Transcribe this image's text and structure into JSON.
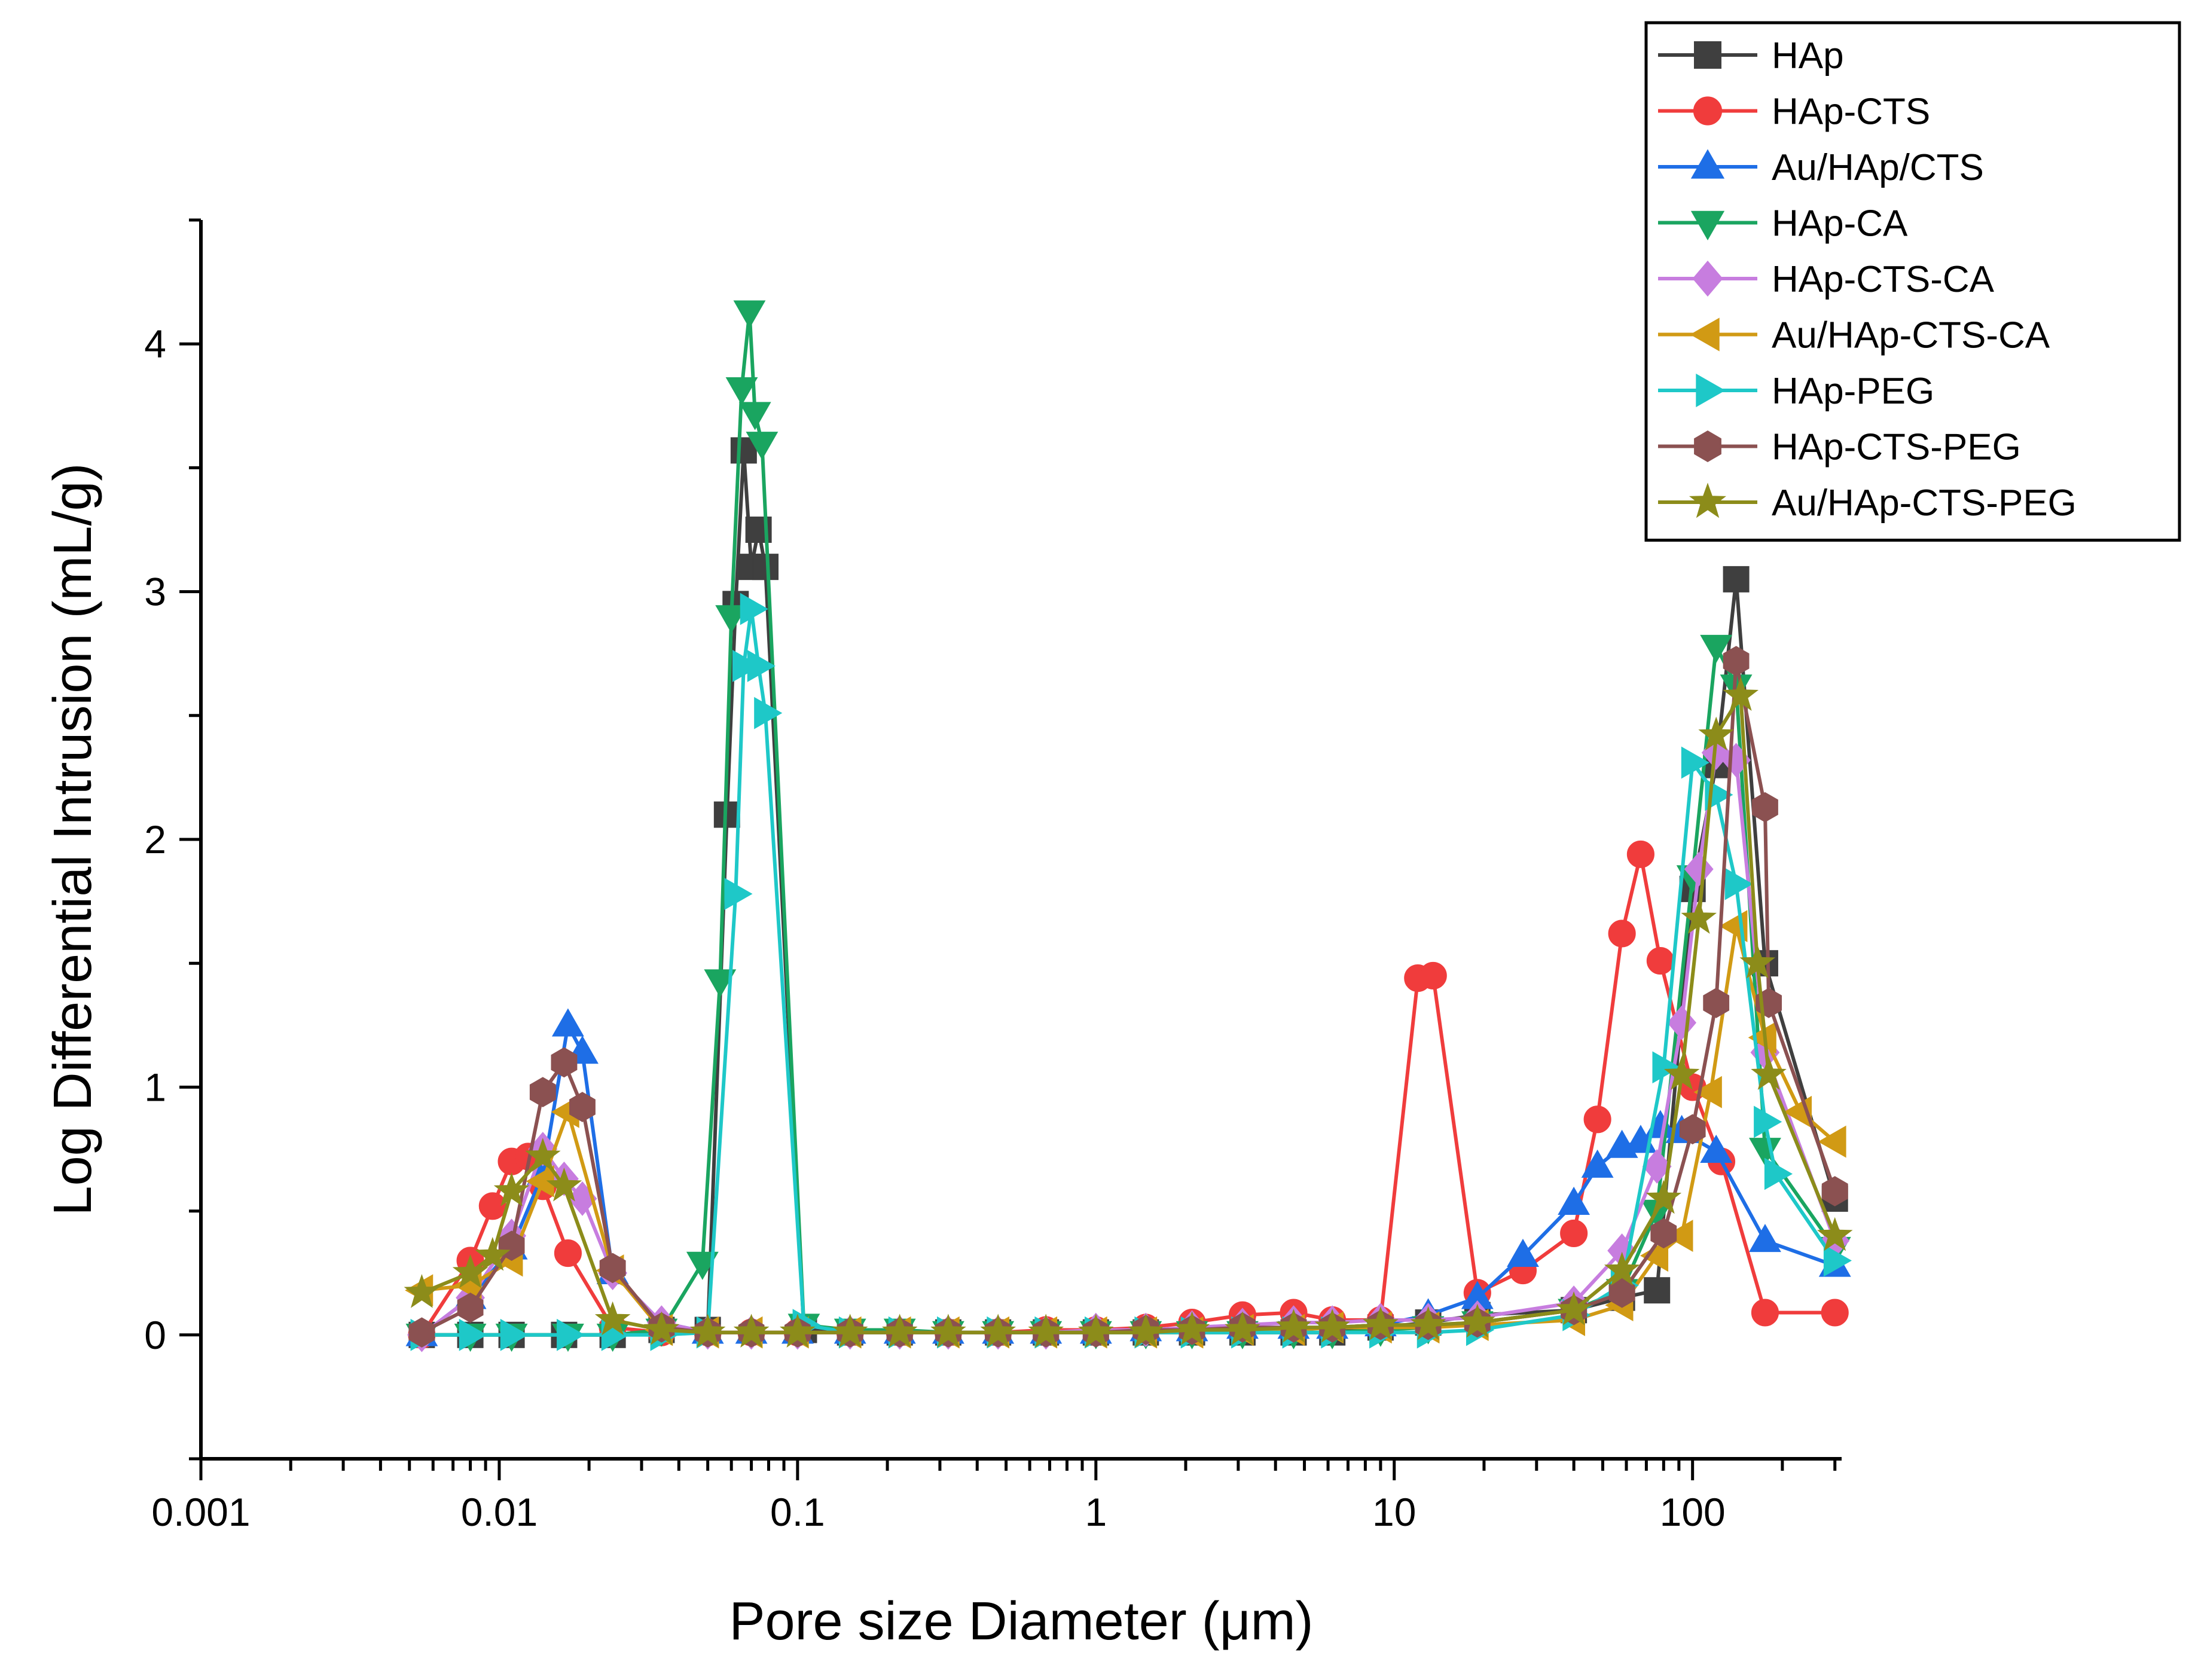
{
  "chart_data": {
    "type": "line",
    "xlabel": "Pore size Diameter (μm)",
    "ylabel": "Log Differential Intrusion (mL/g)",
    "xscale": "log",
    "xlim": [
      0.001,
      316
    ],
    "ylim": [
      -0.5,
      4.5
    ],
    "xticks": [
      {
        "value": 0.001,
        "label": "0.001"
      },
      {
        "value": 0.01,
        "label": "0.01"
      },
      {
        "value": 0.1,
        "label": "0.1"
      },
      {
        "value": 1,
        "label": "1"
      },
      {
        "value": 10,
        "label": "10"
      },
      {
        "value": 100,
        "label": "100"
      }
    ],
    "yticks": [
      {
        "value": 0,
        "label": "0"
      },
      {
        "value": 1,
        "label": "1"
      },
      {
        "value": 2,
        "label": "2"
      },
      {
        "value": 3,
        "label": "3"
      },
      {
        "value": 4,
        "label": "4"
      }
    ],
    "legend_position": "top-right",
    "series": [
      {
        "name": "HAp",
        "color": "#3f3f3f",
        "marker": "square",
        "x": [
          0.0055,
          0.008,
          0.011,
          0.0165,
          0.024,
          0.035,
          0.05,
          0.058,
          0.062,
          0.066,
          0.07,
          0.074,
          0.078,
          0.105,
          0.15,
          0.22,
          0.32,
          0.47,
          0.68,
          1,
          1.47,
          2.1,
          3.1,
          4.6,
          6.2,
          9,
          13,
          19,
          40,
          58,
          76,
          100,
          120,
          140,
          175,
          300
        ],
        "y": [
          0,
          0,
          0,
          0,
          0,
          0.02,
          0.02,
          2.1,
          2.95,
          3.57,
          3.1,
          3.25,
          3.1,
          0.02,
          0.01,
          0.01,
          0.01,
          0.01,
          0.01,
          0.01,
          0.01,
          0.01,
          0.01,
          0.01,
          0.01,
          0.03,
          0.05,
          0.08,
          0.1,
          0.15,
          0.18,
          1.8,
          2.3,
          3.05,
          1.5,
          0.55
        ]
      },
      {
        "name": "HAp-CTS",
        "color": "#f03c3c",
        "marker": "circle",
        "x": [
          0.0055,
          0.008,
          0.0095,
          0.011,
          0.0125,
          0.014,
          0.017,
          0.024,
          0.035,
          0.05,
          0.07,
          0.1,
          0.15,
          0.22,
          0.32,
          0.47,
          0.68,
          1,
          1.47,
          2.1,
          3.1,
          4.6,
          6.2,
          9,
          12,
          13.5,
          19,
          27,
          40,
          48,
          58,
          67,
          78,
          100,
          125,
          175,
          300
        ],
        "y": [
          0,
          0.3,
          0.52,
          0.7,
          0.72,
          0.6,
          0.33,
          0.03,
          0.01,
          0.01,
          0.01,
          0.01,
          0.01,
          0.01,
          0.01,
          0.01,
          0.02,
          0.02,
          0.03,
          0.05,
          0.08,
          0.09,
          0.06,
          0.06,
          1.44,
          1.45,
          0.17,
          0.26,
          0.41,
          0.87,
          1.62,
          1.94,
          1.51,
          1.0,
          0.7,
          0.09,
          0.09
        ]
      },
      {
        "name": "Au/HAp/CTS",
        "color": "#1e6ee6",
        "marker": "triangle-up",
        "x": [
          0.0055,
          0.008,
          0.011,
          0.014,
          0.017,
          0.019,
          0.024,
          0.035,
          0.05,
          0.07,
          0.1,
          0.15,
          0.22,
          0.32,
          0.47,
          0.68,
          1,
          1.47,
          2.1,
          3.1,
          4.6,
          6.2,
          9,
          13,
          19,
          27,
          40,
          48,
          58,
          67,
          78,
          92,
          120,
          175,
          300
        ],
        "y": [
          0,
          0.15,
          0.35,
          0.65,
          1.25,
          1.14,
          0.25,
          0.05,
          0.01,
          0.01,
          0.01,
          0.01,
          0.01,
          0.01,
          0.01,
          0.01,
          0.01,
          0.02,
          0.02,
          0.03,
          0.03,
          0.03,
          0.04,
          0.08,
          0.15,
          0.32,
          0.53,
          0.68,
          0.76,
          0.78,
          0.84,
          0.82,
          0.74,
          0.38,
          0.28
        ]
      },
      {
        "name": "HAp-CA",
        "color": "#1aa560",
        "marker": "triangle-down",
        "x": [
          0.0055,
          0.008,
          0.011,
          0.017,
          0.024,
          0.035,
          0.048,
          0.055,
          0.06,
          0.065,
          0.069,
          0.072,
          0.076,
          0.105,
          0.15,
          0.22,
          0.32,
          0.47,
          0.68,
          1,
          1.47,
          2.1,
          3.1,
          4.6,
          6.2,
          9,
          13,
          19,
          40,
          58,
          76,
          100,
          120,
          140,
          175,
          300
        ],
        "y": [
          0,
          0,
          0,
          0,
          0,
          0.02,
          0.29,
          1.43,
          2.9,
          3.82,
          4.13,
          3.72,
          3.6,
          0.04,
          0.02,
          0.02,
          0.01,
          0.01,
          0.01,
          0.01,
          0.01,
          0.01,
          0.01,
          0.01,
          0.01,
          0.02,
          0.03,
          0.05,
          0.1,
          0.18,
          0.5,
          1.85,
          2.78,
          2.62,
          0.75,
          0.35
        ]
      },
      {
        "name": "HAp-CTS-CA",
        "color": "#c77ddf",
        "marker": "diamond",
        "x": [
          0.0055,
          0.008,
          0.011,
          0.014,
          0.0165,
          0.019,
          0.024,
          0.035,
          0.05,
          0.07,
          0.1,
          0.15,
          0.22,
          0.32,
          0.47,
          0.68,
          1,
          1.47,
          2.1,
          3.1,
          4.6,
          6.2,
          9,
          13,
          19,
          40,
          58,
          76,
          92,
          105,
          120,
          140,
          175,
          300
        ],
        "y": [
          0,
          0.15,
          0.4,
          0.75,
          0.63,
          0.55,
          0.25,
          0.05,
          0.01,
          0.01,
          0.01,
          0.01,
          0.01,
          0.01,
          0.01,
          0.01,
          0.02,
          0.02,
          0.03,
          0.04,
          0.05,
          0.05,
          0.06,
          0.06,
          0.07,
          0.13,
          0.34,
          0.68,
          1.26,
          1.88,
          2.35,
          2.32,
          1.14,
          0.38
        ]
      },
      {
        "name": "Au/HAp-CTS-CA",
        "color": "#d19a14",
        "marker": "triangle-left",
        "x": [
          0.0055,
          0.008,
          0.011,
          0.014,
          0.017,
          0.024,
          0.035,
          0.05,
          0.07,
          0.1,
          0.15,
          0.22,
          0.32,
          0.47,
          0.68,
          1,
          1.47,
          2.1,
          3.1,
          4.6,
          6.2,
          9,
          13,
          19,
          40,
          58,
          76,
          92,
          115,
          140,
          175,
          230,
          300
        ],
        "y": [
          0.18,
          0.2,
          0.3,
          0.62,
          0.9,
          0.26,
          0.02,
          0.01,
          0.01,
          0.01,
          0.01,
          0.01,
          0.01,
          0.01,
          0.01,
          0.01,
          0.01,
          0.01,
          0.02,
          0.02,
          0.03,
          0.03,
          0.03,
          0.04,
          0.06,
          0.12,
          0.32,
          0.4,
          0.98,
          1.65,
          1.2,
          0.9,
          0.78
        ]
      },
      {
        "name": "HAp-PEG",
        "color": "#1ec8c8",
        "marker": "triangle-right",
        "x": [
          0.0055,
          0.008,
          0.011,
          0.017,
          0.024,
          0.035,
          0.05,
          0.062,
          0.066,
          0.07,
          0.074,
          0.078,
          0.105,
          0.15,
          0.22,
          0.32,
          0.47,
          0.68,
          1,
          1.47,
          2.1,
          3.1,
          4.6,
          6.2,
          9,
          13,
          19,
          40,
          58,
          80,
          100,
          120,
          140,
          175,
          190,
          300
        ],
        "y": [
          0,
          0,
          0,
          0,
          0,
          0,
          0.01,
          1.78,
          2.7,
          2.93,
          2.7,
          2.51,
          0.04,
          0.01,
          0.01,
          0.01,
          0.01,
          0.01,
          0.01,
          0.01,
          0.01,
          0.01,
          0.01,
          0.01,
          0.01,
          0.01,
          0.02,
          0.08,
          0.2,
          1.08,
          2.31,
          2.18,
          1.82,
          0.86,
          0.65,
          0.3
        ]
      },
      {
        "name": "HAp-CTS-PEG",
        "color": "#8b5151",
        "marker": "hexagon",
        "x": [
          0.0055,
          0.008,
          0.011,
          0.014,
          0.0165,
          0.019,
          0.024,
          0.035,
          0.05,
          0.07,
          0.1,
          0.15,
          0.22,
          0.32,
          0.47,
          0.68,
          1,
          1.47,
          2.1,
          3.1,
          4.6,
          6.2,
          9,
          13,
          19,
          40,
          58,
          80,
          100,
          120,
          140,
          175,
          180,
          300
        ],
        "y": [
          0.01,
          0.11,
          0.36,
          0.98,
          1.1,
          0.92,
          0.27,
          0.03,
          0.01,
          0.01,
          0.01,
          0.01,
          0.01,
          0.01,
          0.01,
          0.01,
          0.01,
          0.02,
          0.02,
          0.03,
          0.03,
          0.03,
          0.04,
          0.04,
          0.05,
          0.1,
          0.17,
          0.41,
          0.83,
          1.34,
          2.72,
          2.13,
          1.34,
          0.58
        ]
      },
      {
        "name": "Au/HAp-CTS-PEG",
        "color": "#8c8c1a",
        "marker": "star",
        "x": [
          0.0055,
          0.008,
          0.0095,
          0.011,
          0.014,
          0.0165,
          0.024,
          0.035,
          0.05,
          0.07,
          0.1,
          0.15,
          0.22,
          0.32,
          0.47,
          0.68,
          1,
          1.47,
          2.1,
          3.1,
          4.6,
          6.2,
          9,
          13,
          19,
          40,
          58,
          80,
          92,
          105,
          120,
          145,
          165,
          180,
          300
        ],
        "y": [
          0.17,
          0.25,
          0.32,
          0.58,
          0.72,
          0.6,
          0.06,
          0.02,
          0.01,
          0.01,
          0.01,
          0.01,
          0.01,
          0.01,
          0.01,
          0.01,
          0.01,
          0.01,
          0.02,
          0.02,
          0.03,
          0.03,
          0.04,
          0.04,
          0.05,
          0.1,
          0.26,
          0.55,
          1.05,
          1.68,
          2.42,
          2.58,
          1.5,
          1.05,
          0.4
        ]
      }
    ]
  }
}
